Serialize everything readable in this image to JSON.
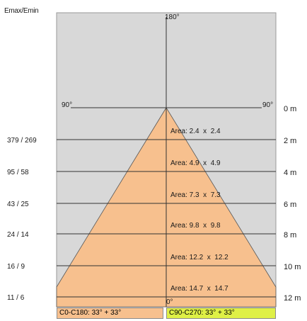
{
  "header": {
    "title": "Emax/Emin"
  },
  "angles": {
    "top": "180°",
    "left": "90°",
    "right": "90°",
    "bottom": "0°"
  },
  "rows": [
    {
      "distance": "0 m",
      "emax_emin": "",
      "area": ""
    },
    {
      "distance": "2 m",
      "emax_emin": "379 / 269",
      "area": "Area: 2.4  x  2.4"
    },
    {
      "distance": "4 m",
      "emax_emin": "95 / 58",
      "area": "Area: 4.9  x  4.9"
    },
    {
      "distance": "6 m",
      "emax_emin": "43 / 25",
      "area": "Area: 7.3  x  7.3"
    },
    {
      "distance": "8 m",
      "emax_emin": "24 / 14",
      "area": "Area: 9.8  x  9.8"
    },
    {
      "distance": "10 m",
      "emax_emin": "16 / 9",
      "area": "Area: 12.2  x  12.2"
    },
    {
      "distance": "12 m",
      "emax_emin": "11 / 6",
      "area": "Area: 14.7  x  14.7"
    }
  ],
  "planes": [
    {
      "label": "C0-C180: 33° + 33°",
      "color": "#f7c08e"
    },
    {
      "label": "C90-C270: 33° + 33°",
      "color": "#dff046"
    }
  ],
  "colors": {
    "background": "#d8d8d8",
    "cone": "#f7c08e",
    "line": "#333333"
  }
}
